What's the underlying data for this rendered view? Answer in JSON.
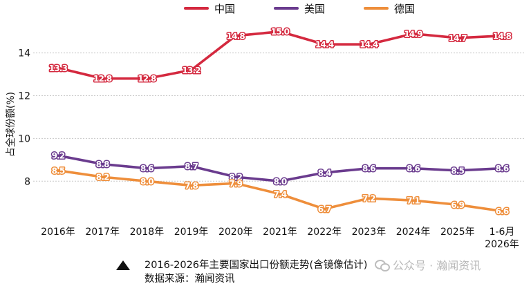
{
  "chart_data": {
    "type": "line",
    "categories": [
      "2016年",
      "2017年",
      "2018年",
      "2019年",
      "2020年",
      "2021年",
      "2022年",
      "2023年",
      "2024年",
      "2025年",
      "1-6月\n2026年"
    ],
    "series": [
      {
        "name": "中国",
        "color": "#d4293f",
        "values": [
          13.3,
          12.8,
          12.8,
          13.2,
          14.8,
          15.0,
          14.4,
          14.4,
          14.9,
          14.7,
          14.8
        ]
      },
      {
        "name": "美国",
        "color": "#6a3b8e",
        "values": [
          9.2,
          8.8,
          8.6,
          8.7,
          8.2,
          8.0,
          8.4,
          8.6,
          8.6,
          8.5,
          8.6
        ]
      },
      {
        "name": "德国",
        "color": "#ee8e3b",
        "values": [
          8.5,
          8.2,
          8.0,
          7.8,
          7.9,
          7.4,
          6.7,
          7.2,
          7.1,
          6.9,
          6.6
        ]
      }
    ],
    "ylabel": "占全球份额(%)",
    "yticks": [
      8,
      10,
      12,
      14
    ],
    "ylim": [
      6.2,
      15.7
    ],
    "grid": true,
    "legend": "top-center",
    "data_labels": true
  },
  "caption": {
    "title": "2016-2026年主要国家出口份额走势(含镜像估计)",
    "source": "数据来源：瀚闻资讯"
  },
  "watermark": {
    "text": "公众号 · 瀚闻资讯"
  }
}
